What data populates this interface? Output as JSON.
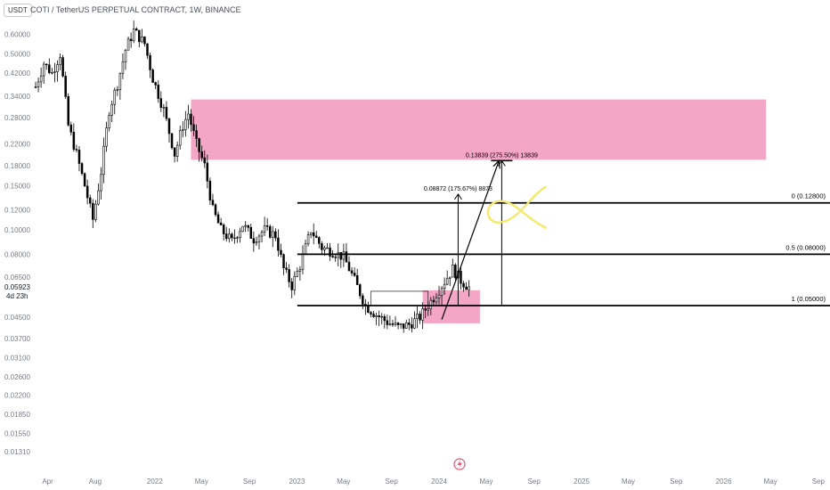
{
  "header": {
    "symbol_badge": "USDT",
    "title": "COTI / TetherUS PERPETUAL CONTRACT, 1W, BINANCE"
  },
  "price_label": {
    "price": "0.05923",
    "countdown": "4d 23h"
  },
  "watermark_icon": "lightning-icon",
  "colors": {
    "up": "#ffffff",
    "down": "#000000",
    "zone": "#f4a6c6",
    "fib_line": "#000000",
    "annotation": "#f5e96b"
  },
  "chart_data": {
    "type": "candlestick",
    "yscale": "log",
    "ylim": [
      0.0118,
      0.72
    ],
    "y_ticks": [
      "0.60000",
      "0.50000",
      "0.42000",
      "0.34000",
      "0.28000",
      "0.22000",
      "0.18000",
      "0.15000",
      "0.12000",
      "0.10000",
      "0.08000",
      "0.06500",
      "0.04500",
      "0.03700",
      "0.03100",
      "0.02600",
      "0.02200",
      "0.01850",
      "0.01550",
      "0.01310"
    ],
    "x_ticks": [
      "Apr",
      "Aug",
      "2022",
      "May",
      "Sep",
      "2023",
      "May",
      "Sep",
      "2024",
      "May",
      "Sep",
      "2025",
      "May",
      "Sep",
      "2026",
      "May",
      "Sep"
    ],
    "x_tick_dates": [
      "2021-04-01",
      "2021-08-01",
      "2022-01-01",
      "2022-05-01",
      "2022-09-01",
      "2023-01-01",
      "2023-05-01",
      "2023-09-01",
      "2024-01-01",
      "2024-05-01",
      "2024-09-01",
      "2025-01-01",
      "2025-05-01",
      "2025-09-01",
      "2026-01-01",
      "2026-05-01",
      "2026-09-01"
    ],
    "x_start": "2021-03-01",
    "x_end": "2026-10-01",
    "path": [
      [
        "2021-03-01",
        0.37
      ],
      [
        "2021-03-22",
        0.46
      ],
      [
        "2021-04-12",
        0.42
      ],
      [
        "2021-05-03",
        0.5
      ],
      [
        "2021-05-24",
        0.26
      ],
      [
        "2021-06-14",
        0.2
      ],
      [
        "2021-07-05",
        0.15
      ],
      [
        "2021-07-26",
        0.11
      ],
      [
        "2021-08-16",
        0.17
      ],
      [
        "2021-09-06",
        0.3
      ],
      [
        "2021-09-27",
        0.38
      ],
      [
        "2021-10-18",
        0.52
      ],
      [
        "2021-11-08",
        0.62
      ],
      [
        "2021-12-06",
        0.55
      ],
      [
        "2021-12-27",
        0.4
      ],
      [
        "2022-01-24",
        0.3
      ],
      [
        "2022-02-21",
        0.2
      ],
      [
        "2022-03-14",
        0.26
      ],
      [
        "2022-03-28",
        0.29
      ],
      [
        "2022-04-18",
        0.22
      ],
      [
        "2022-05-09",
        0.18
      ],
      [
        "2022-05-30",
        0.12
      ],
      [
        "2022-06-20",
        0.1
      ],
      [
        "2022-07-18",
        0.09
      ],
      [
        "2022-08-15",
        0.105
      ],
      [
        "2022-09-12",
        0.092
      ],
      [
        "2022-10-10",
        0.1
      ],
      [
        "2022-11-07",
        0.095
      ],
      [
        "2022-11-28",
        0.07
      ],
      [
        "2022-12-19",
        0.06
      ],
      [
        "2023-01-09",
        0.072
      ],
      [
        "2023-02-06",
        0.1
      ],
      [
        "2023-03-06",
        0.085
      ],
      [
        "2023-04-03",
        0.082
      ],
      [
        "2023-05-01",
        0.078
      ],
      [
        "2023-05-29",
        0.063
      ],
      [
        "2023-06-26",
        0.05
      ],
      [
        "2023-07-24",
        0.046
      ],
      [
        "2023-08-21",
        0.043
      ],
      [
        "2023-09-18",
        0.041
      ],
      [
        "2023-10-16",
        0.042
      ],
      [
        "2023-11-13",
        0.045
      ],
      [
        "2023-12-11",
        0.052
      ],
      [
        "2024-01-08",
        0.06
      ],
      [
        "2024-02-05",
        0.07
      ],
      [
        "2024-02-26",
        0.063
      ],
      [
        "2024-03-18",
        0.059
      ]
    ],
    "zones": [
      {
        "x1": "2022-04-04",
        "x2": "2026-04-20",
        "y1": 0.19,
        "y2": 0.33
      },
      {
        "x1": "2023-11-20",
        "x2": "2024-04-15",
        "y1": 0.0425,
        "y2": 0.0575
      }
    ],
    "fib_levels": [
      {
        "label": "0 (0.12800)",
        "price": 0.128,
        "x1": "2023-01-02"
      },
      {
        "label": "0.5 (0.08000)",
        "price": 0.08,
        "x1": "2023-01-02"
      },
      {
        "label": "1 (0.05000)",
        "price": 0.05,
        "x1": "2023-01-02"
      }
    ],
    "measures": [
      {
        "label": "0.08872 (175.67%) 8873",
        "x": "2024-02-19",
        "y1": 0.05,
        "y2": 0.1387
      },
      {
        "label": "0.13839 (275.50%) 13839",
        "x": "2024-06-10",
        "y1": 0.05,
        "y2": 0.1884
      }
    ],
    "rect_line": {
      "x1": "2023-07-10",
      "x2": "2023-12-04",
      "y": 0.057
    },
    "arrow": {
      "x1": "2024-01-08",
      "y1": 0.044,
      "x2": "2024-06-03",
      "y2": 0.1884
    },
    "fish_marker": {
      "x": "2024-07-01",
      "y": 0.118
    }
  }
}
